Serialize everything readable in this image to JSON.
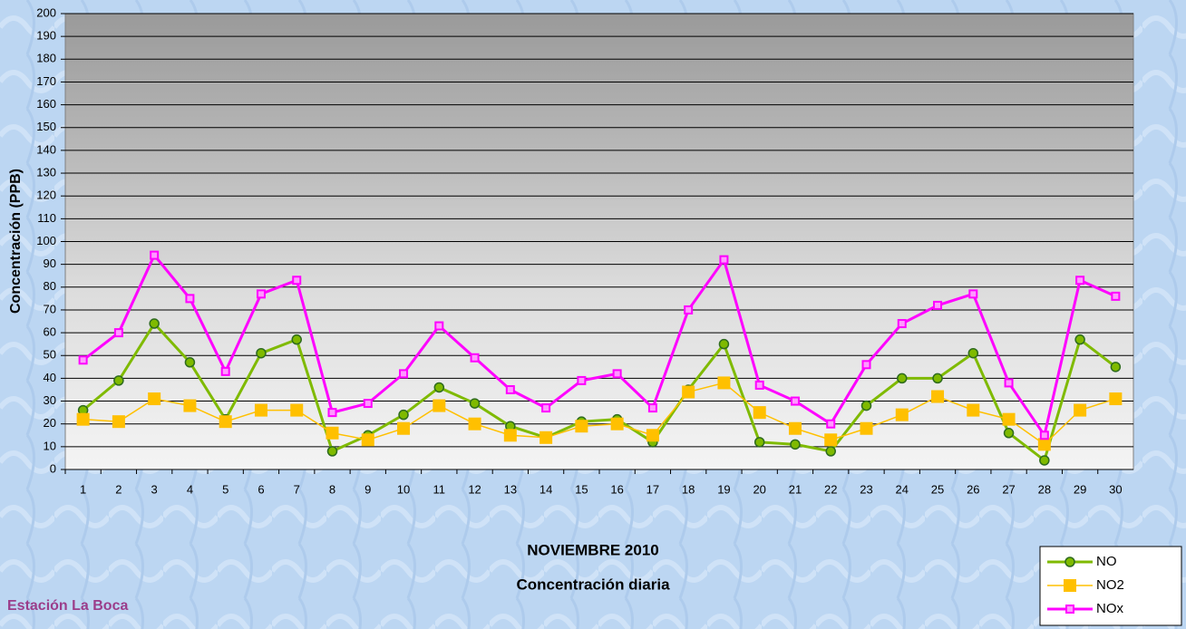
{
  "chart_data": {
    "type": "line",
    "title": "NOVIEMBRE 2010",
    "subtitle": "Concentración diaria",
    "y_label": "Concentración  (PPB)",
    "annotation": "Estación La Boca",
    "categories": [
      "1",
      "2",
      "3",
      "4",
      "5",
      "6",
      "7",
      "8",
      "9",
      "10",
      "11",
      "12",
      "13",
      "14",
      "15",
      "16",
      "17",
      "18",
      "19",
      "20",
      "21",
      "22",
      "23",
      "24",
      "25",
      "26",
      "27",
      "28",
      "29",
      "30"
    ],
    "series": [
      {
        "name": "NO",
        "color": "#7fba00",
        "marker": "circle",
        "values": [
          26,
          39,
          64,
          47,
          22,
          51,
          57,
          8,
          15,
          24,
          36,
          29,
          19,
          14,
          21,
          22,
          12,
          35,
          55,
          12,
          11,
          8,
          28,
          40,
          40,
          51,
          16,
          4,
          57,
          45
        ]
      },
      {
        "name": "NO2",
        "color": "#ffc000",
        "marker": "square",
        "values": [
          22,
          21,
          31,
          28,
          21,
          26,
          26,
          16,
          13,
          18,
          28,
          20,
          15,
          14,
          19,
          20,
          15,
          34,
          38,
          25,
          18,
          13,
          18,
          24,
          32,
          26,
          22,
          11,
          26,
          31
        ]
      },
      {
        "name": "NOx",
        "color": "#ff00ff",
        "marker": "square",
        "values": [
          48,
          60,
          94,
          75,
          43,
          77,
          83,
          25,
          29,
          42,
          63,
          49,
          35,
          27,
          39,
          42,
          27,
          70,
          92,
          37,
          30,
          20,
          46,
          64,
          72,
          77,
          38,
          15,
          83,
          76
        ]
      }
    ],
    "ylim": [
      0,
      200
    ],
    "yticks": [
      0,
      10,
      20,
      30,
      40,
      50,
      60,
      70,
      80,
      90,
      100,
      110,
      120,
      130,
      140,
      150,
      160,
      170,
      180,
      190,
      200
    ],
    "grid": true,
    "legend": "bottom-right"
  }
}
